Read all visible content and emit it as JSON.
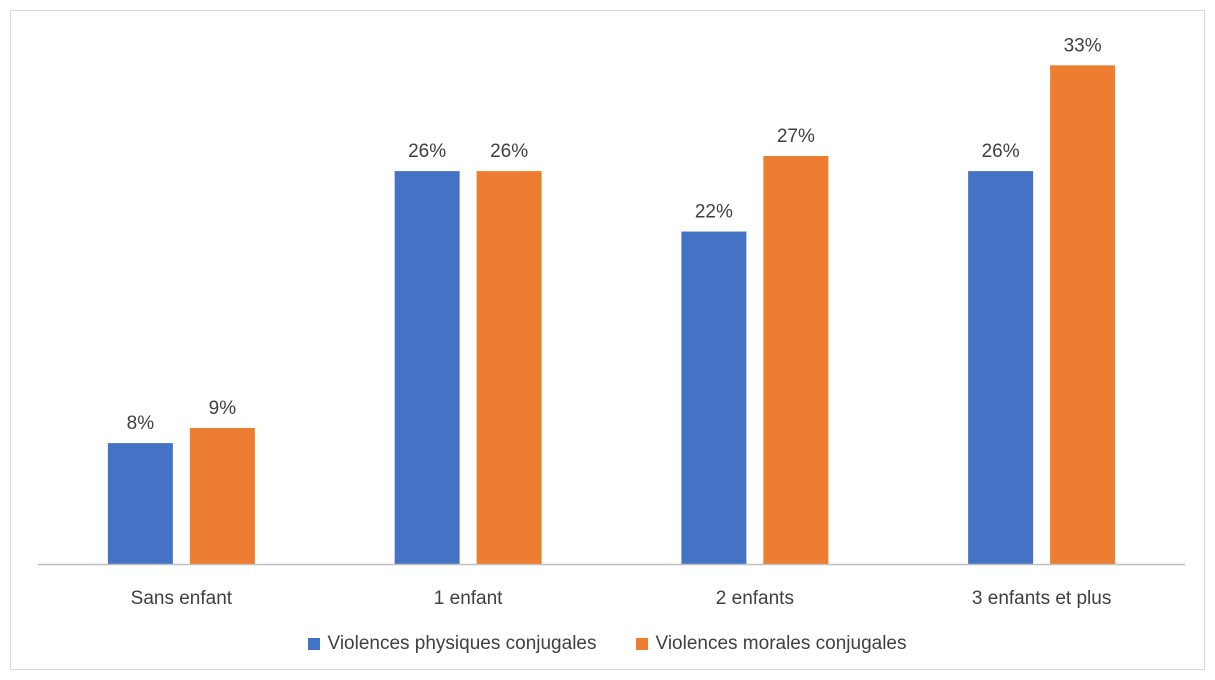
{
  "chart_data": {
    "type": "bar",
    "categories": [
      "Sans enfant",
      "1 enfant",
      "2 enfants",
      "3 enfants et plus"
    ],
    "series": [
      {
        "name": "Violences physiques conjugales",
        "values": [
          8,
          26,
          22,
          26
        ],
        "labels": [
          "8%",
          "26%",
          "22%",
          "26%"
        ],
        "color": "#4472C4"
      },
      {
        "name": "Violences morales conjugales",
        "values": [
          9,
          26,
          27,
          33
        ],
        "labels": [
          "9%",
          "26%",
          "27%",
          "33%"
        ],
        "color": "#ED7D31"
      }
    ],
    "ylim": [
      0,
      36
    ],
    "grid": false,
    "legend_position": "bottom",
    "axis_color": "#bfbfbf"
  }
}
